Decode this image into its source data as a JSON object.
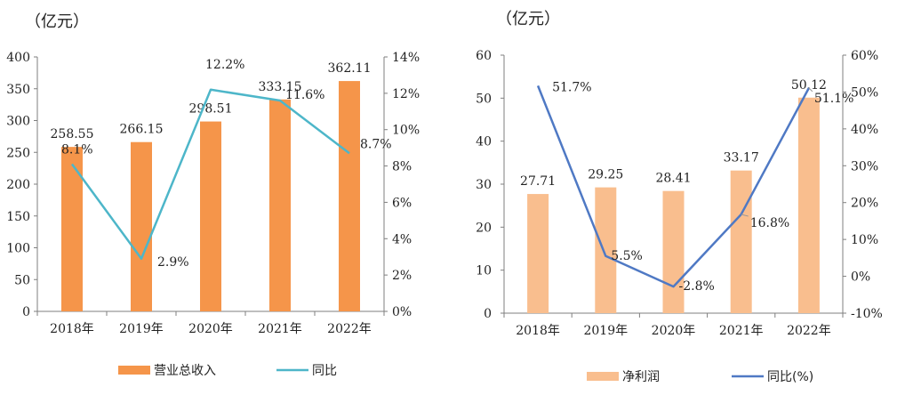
{
  "chart_data": [
    {
      "type": "bar",
      "unit_label": "（亿元）",
      "categories": [
        "2018年",
        "2019年",
        "2020年",
        "2021年",
        "2022年"
      ],
      "series": [
        {
          "name": "营业总收入",
          "kind": "bar",
          "axis": "left",
          "color": "#F5954A",
          "values": [
            258.55,
            266.15,
            298.51,
            333.15,
            362.11
          ],
          "labels": [
            "258.55",
            "266.15",
            "298.51",
            "333.15",
            "362.11"
          ]
        },
        {
          "name": "同比",
          "kind": "line",
          "axis": "right",
          "color": "#4DB6C9",
          "values": [
            8.1,
            2.9,
            12.2,
            11.6,
            8.7
          ],
          "labels": [
            "8.1%",
            "2.9%",
            "12.2%",
            "11.6%",
            "8.7%"
          ]
        }
      ],
      "left_axis": {
        "ylim": [
          0,
          400
        ],
        "ticks": [
          "0",
          "50",
          "100",
          "150",
          "200",
          "250",
          "300",
          "350",
          "400"
        ]
      },
      "right_axis": {
        "ylim": [
          0,
          14
        ],
        "ticks": [
          "0%",
          "2%",
          "4%",
          "6%",
          "8%",
          "10%",
          "12%",
          "14%"
        ]
      },
      "legend": [
        "营业总收入",
        "同比"
      ]
    },
    {
      "type": "bar",
      "unit_label": "（亿元）",
      "categories": [
        "2018年",
        "2019年",
        "2020年",
        "2021年",
        "2022年"
      ],
      "series": [
        {
          "name": "净利润",
          "kind": "bar",
          "axis": "left",
          "color": "#F9BE8E",
          "values": [
            27.71,
            29.25,
            28.41,
            33.17,
            50.12
          ],
          "labels": [
            "27.71",
            "29.25",
            "28.41",
            "33.17",
            "50.12"
          ]
        },
        {
          "name": "同比(%)",
          "kind": "line",
          "axis": "right",
          "color": "#4F79C4",
          "values": [
            51.7,
            5.5,
            -2.8,
            16.8,
            51.1
          ],
          "labels": [
            "51.7%",
            "5.5%",
            "-2.8%",
            "16.8%",
            "51.1%"
          ]
        }
      ],
      "left_axis": {
        "ylim": [
          0,
          60
        ],
        "ticks": [
          "0",
          "10",
          "20",
          "30",
          "40",
          "50",
          "60"
        ]
      },
      "right_axis": {
        "ylim": [
          -10,
          60
        ],
        "ticks": [
          "-10%",
          "0%",
          "10%",
          "20%",
          "30%",
          "40%",
          "50%",
          "60%"
        ]
      },
      "legend": [
        "净利润",
        "同比(%)"
      ]
    }
  ]
}
